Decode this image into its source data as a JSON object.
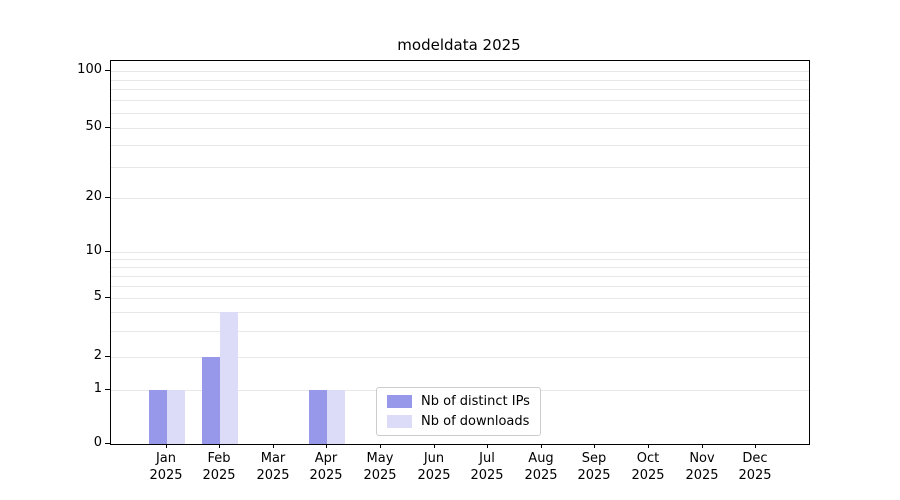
{
  "title": "modeldata 2025",
  "chart_data": {
    "type": "bar",
    "categories": [
      "Jan",
      "Feb",
      "Mar",
      "Apr",
      "May",
      "Jun",
      "Jul",
      "Aug",
      "Sep",
      "Oct",
      "Nov",
      "Dec"
    ],
    "year_label": "2025",
    "series": [
      {
        "name": "Nb of distinct IPs",
        "color": "#9898ea",
        "values": [
          1,
          2,
          0,
          1,
          0,
          0,
          0,
          0,
          0,
          0,
          0,
          0
        ]
      },
      {
        "name": "Nb of downloads",
        "color": "#dcdcf8",
        "values": [
          1,
          4,
          0,
          1,
          0,
          0,
          0,
          0,
          0,
          0,
          0,
          0
        ]
      }
    ],
    "yscale": "symlog",
    "yticks": [
      0,
      1,
      2,
      5,
      10,
      20,
      50,
      100
    ],
    "ylim": [
      0,
      115
    ],
    "xlabel": "",
    "ylabel": "",
    "grid": true,
    "legend": {
      "position": "lower center"
    }
  }
}
